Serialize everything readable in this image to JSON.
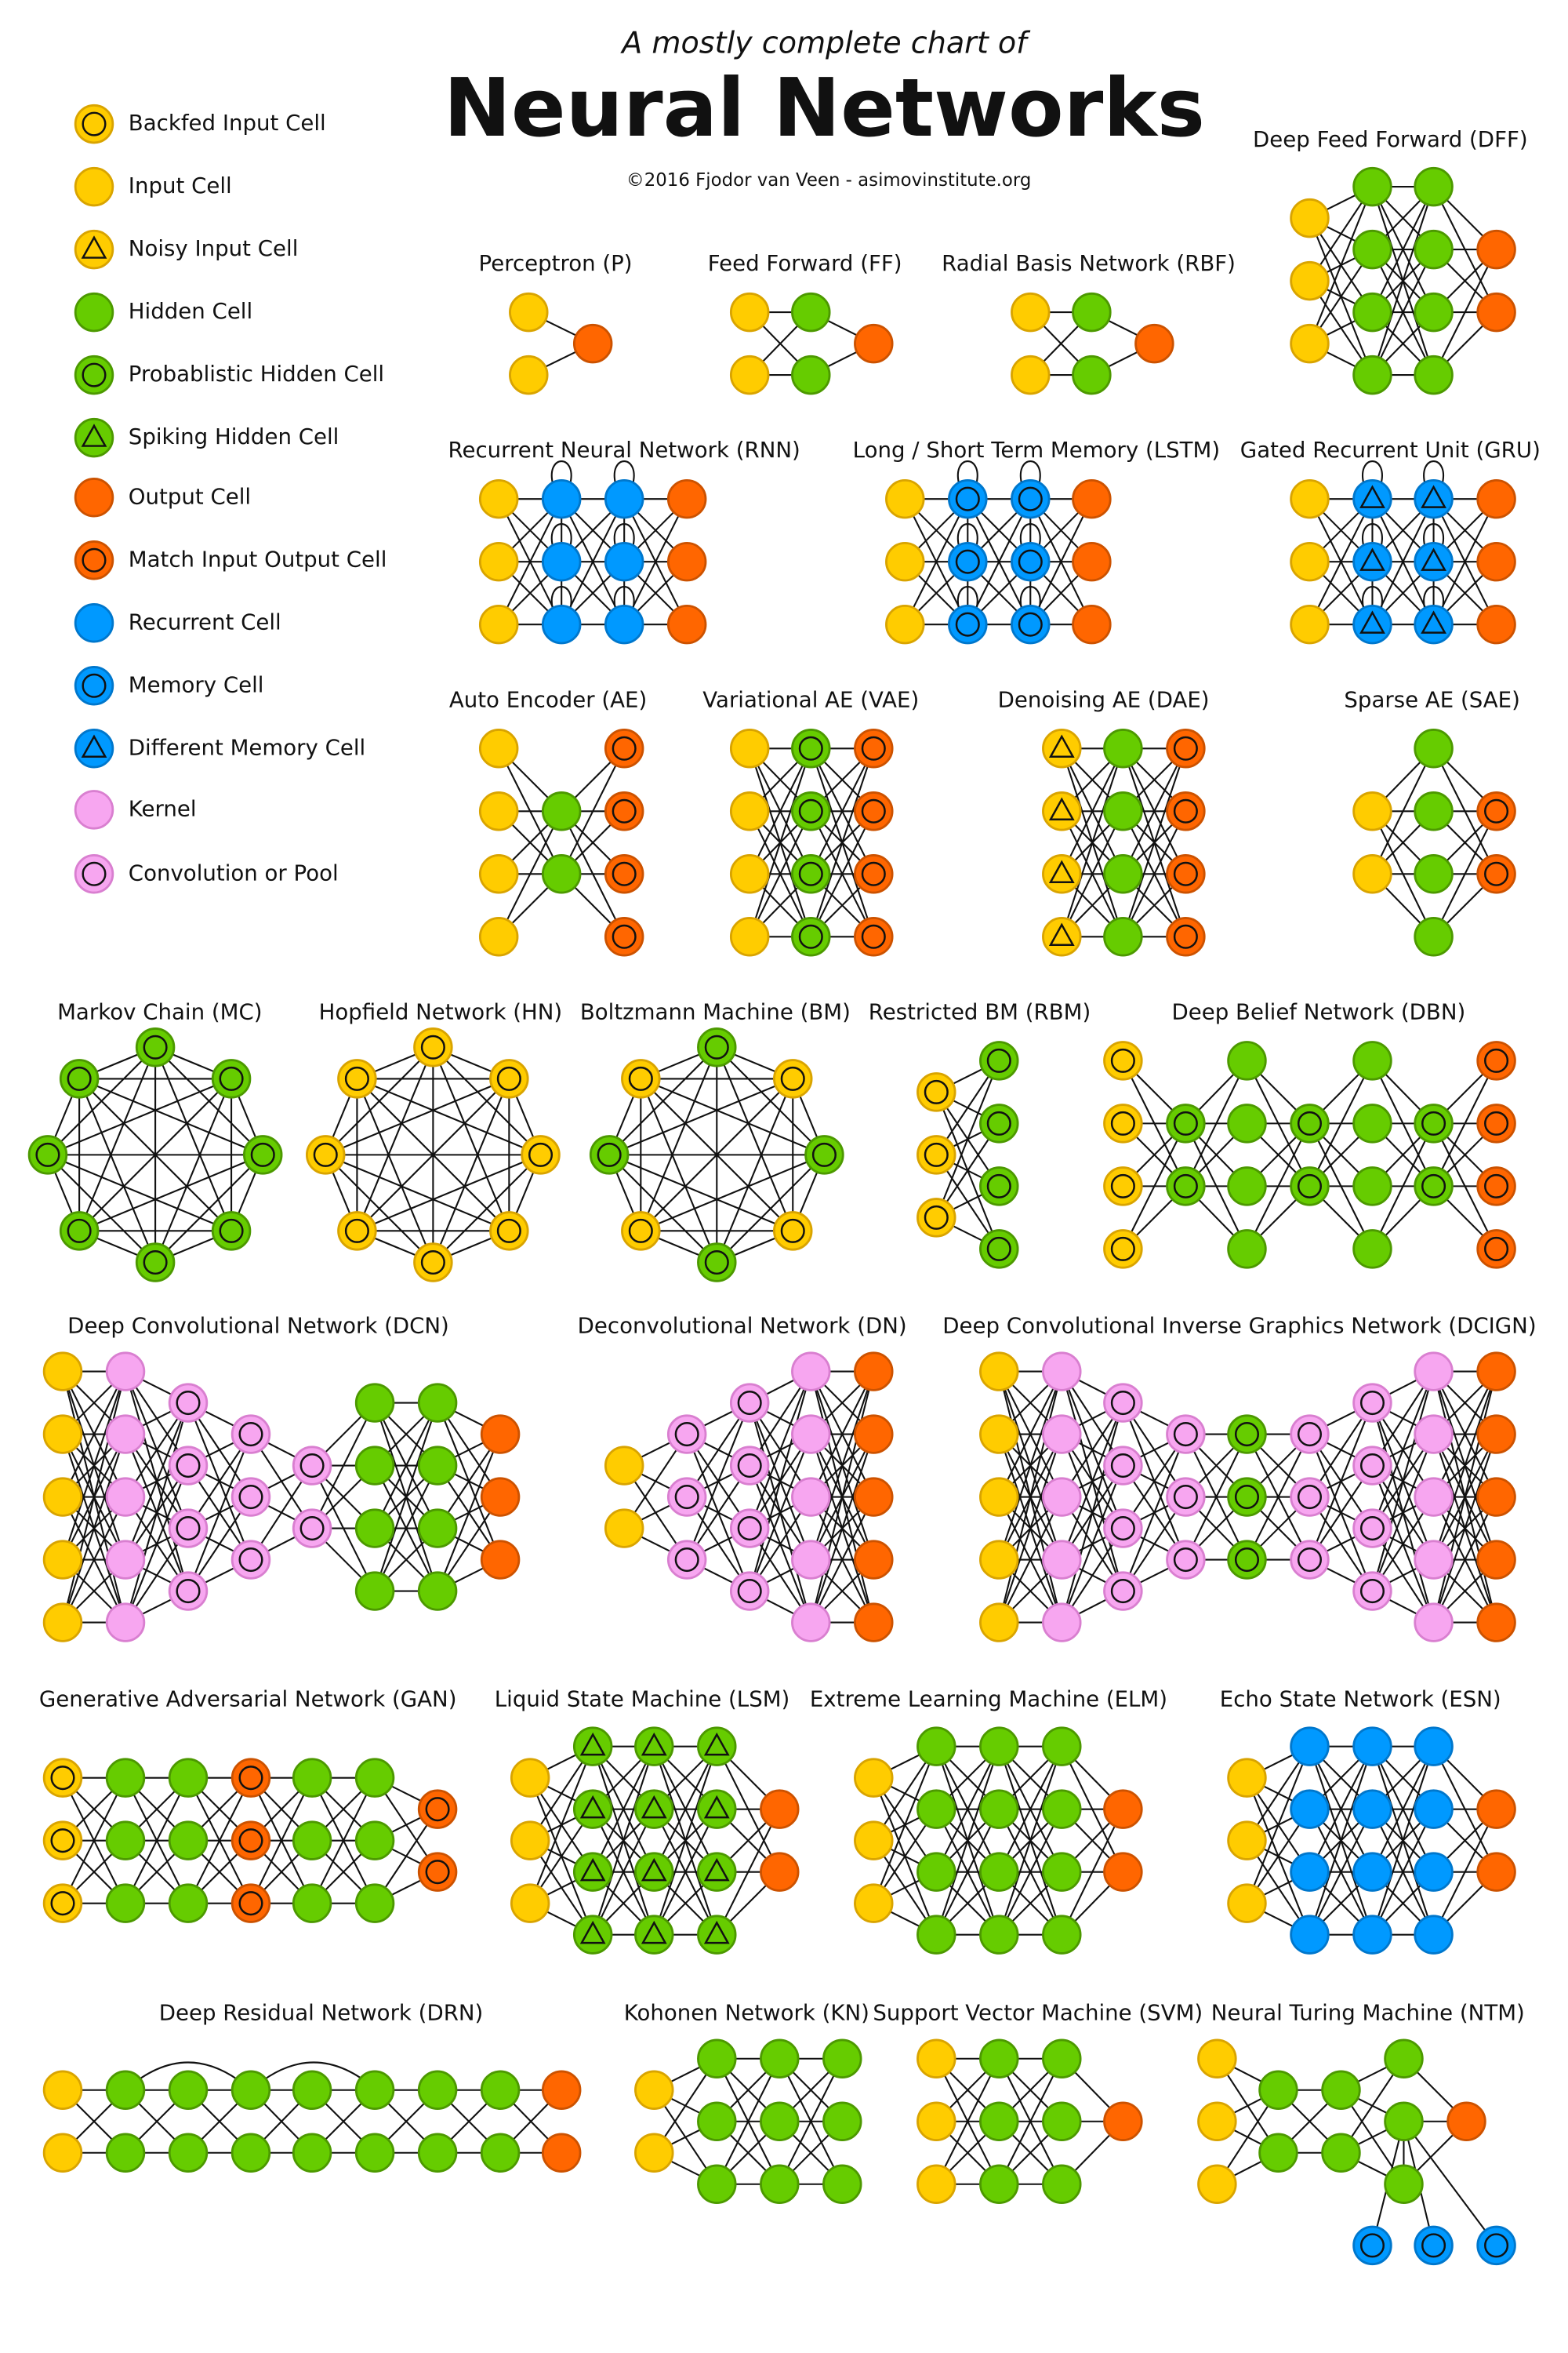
{
  "header": {
    "intro": "A mostly complete chart of",
    "title": "Neural Networks",
    "credit": "©2016 Fjodor van Veen - asimovinstitute.org"
  },
  "legend": [
    "Backfed Input Cell",
    "Input Cell",
    "Noisy Input Cell",
    "Hidden Cell",
    "Probablistic Hidden Cell",
    "Spiking Hidden Cell",
    "Output Cell",
    "Match Input Output Cell",
    "Recurrent Cell",
    "Memory Cell",
    "Different Memory Cell",
    "Kernel",
    "Convolution or Pool"
  ],
  "networks": [
    "Perceptron (P)",
    "Feed Forward (FF)",
    "Radial Basis Network (RBF)",
    "Deep Feed Forward (DFF)",
    "Recurrent Neural Network (RNN)",
    "Long / Short Term Memory (LSTM)",
    "Gated Recurrent Unit (GRU)",
    "Auto Encoder (AE)",
    "Variational AE (VAE)",
    "Denoising AE (DAE)",
    "Sparse AE (SAE)",
    "Markov Chain (MC)",
    "Hopfield Network (HN)",
    "Boltzmann Machine (BM)",
    "Restricted BM (RBM)",
    "Deep Belief Network (DBN)",
    "Deep Convolutional Network (DCN)",
    "Deconvolutional Network (DN)",
    "Deep Convolutional Inverse Graphics Network (DCIGN)",
    "Generative Adversarial Network (GAN)",
    "Liquid State Machine (LSM)",
    "Extreme Learning Machine (ELM)",
    "Echo State Network (ESN)",
    "Deep Residual Network (DRN)",
    "Kohonen Network (KN)",
    "Support Vector Machine (SVM)",
    "Neural Turing Machine (NTM)"
  ]
}
